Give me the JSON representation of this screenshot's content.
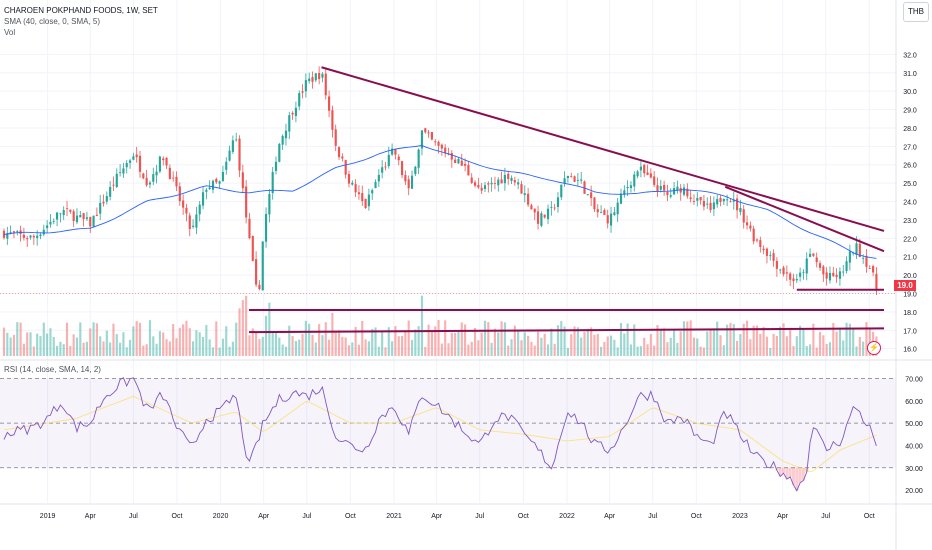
{
  "legend": {
    "title": "CHAROEN POKPHAND FOODS, 1W, SET",
    "sma": "SMA (40, close, 0, SMA, 5)",
    "vol": "Vol",
    "rsi": "RSI (14, close, SMA, 14, 2)"
  },
  "currency": "THB",
  "last_price": "19.0",
  "bolt_icon": "⚡",
  "chart_data": {
    "type": "candlestick",
    "timeframe": "1W",
    "price_axis": {
      "ticks": [
        "32.0",
        "31.0",
        "30.0",
        "29.0",
        "28.0",
        "27.0",
        "26.0",
        "25.0",
        "24.0",
        "23.0",
        "22.0",
        "21.0",
        "20.0",
        "19.0",
        "18.0",
        "17.0",
        "16.0"
      ],
      "range": [
        15.6,
        33.0
      ]
    },
    "rsi_axis": {
      "ticks": [
        "70.00",
        "60.00",
        "50.00",
        "40.00",
        "30.00",
        "20.00"
      ],
      "range": [
        16,
        72
      ],
      "levels": [
        70,
        50,
        30
      ]
    },
    "x_ticks": [
      "2019",
      "Apr",
      "Jul",
      "Oct",
      "2020",
      "Apr",
      "Jul",
      "Oct",
      "2021",
      "Apr",
      "Jul",
      "Oct",
      "2022",
      "Apr",
      "Jul",
      "Oct",
      "2023",
      "Apr",
      "Jul",
      "Oct"
    ],
    "x_tick_dates": [
      "2019-01",
      "2019-04",
      "2019-07",
      "2019-10",
      "2020-01",
      "2020-04",
      "2020-07",
      "2020-10",
      "2021-01",
      "2021-04",
      "2021-07",
      "2021-10",
      "2022-01",
      "2022-04",
      "2022-07",
      "2022-10",
      "2023-01",
      "2023-04",
      "2023-07",
      "2023-10"
    ],
    "date_range": [
      "2018-10",
      "2023-11"
    ],
    "price_keyframes": [
      [
        "2018-10",
        22.3
      ],
      [
        "2018-12",
        22.0
      ],
      [
        "2019-02",
        23.5
      ],
      [
        "2019-04",
        22.8
      ],
      [
        "2019-06",
        25.5
      ],
      [
        "2019-07",
        26.6
      ],
      [
        "2019-08",
        25.0
      ],
      [
        "2019-09",
        26.5
      ],
      [
        "2019-10",
        24.5
      ],
      [
        "2019-11",
        22.3
      ],
      [
        "2019-12",
        24.8
      ],
      [
        "2020-01",
        25.0
      ],
      [
        "2020-02",
        27.7
      ],
      [
        "2020-03",
        22.0
      ],
      [
        "2020-03-20",
        18.5
      ],
      [
        "2020-04",
        22.5
      ],
      [
        "2020-05",
        27.0
      ],
      [
        "2020-06",
        29.0
      ],
      [
        "2020-07",
        30.5
      ],
      [
        "2020-08",
        31.0
      ],
      [
        "2020-09",
        27.0
      ],
      [
        "2020-10",
        25.0
      ],
      [
        "2020-11",
        23.7
      ],
      [
        "2020-12",
        25.5
      ],
      [
        "2021-01",
        26.8
      ],
      [
        "2021-02",
        24.5
      ],
      [
        "2021-03",
        27.8
      ],
      [
        "2021-04",
        27.0
      ],
      [
        "2021-05",
        26.5
      ],
      [
        "2021-06",
        25.8
      ],
      [
        "2021-07",
        24.5
      ],
      [
        "2021-08",
        25.0
      ],
      [
        "2021-09",
        25.5
      ],
      [
        "2021-10",
        24.5
      ],
      [
        "2021-11",
        23.0
      ],
      [
        "2021-12",
        23.5
      ],
      [
        "2022-01",
        25.5
      ],
      [
        "2022-02",
        25.0
      ],
      [
        "2022-03",
        23.5
      ],
      [
        "2022-04",
        23.0
      ],
      [
        "2022-05",
        24.5
      ],
      [
        "2022-06",
        25.8
      ],
      [
        "2022-07",
        25.0
      ],
      [
        "2022-08",
        24.3
      ],
      [
        "2022-09",
        24.8
      ],
      [
        "2022-10",
        24.0
      ],
      [
        "2022-11",
        23.5
      ],
      [
        "2022-12",
        24.5
      ],
      [
        "2023-01",
        23.5
      ],
      [
        "2023-02",
        22.0
      ],
      [
        "2023-03",
        21.2
      ],
      [
        "2023-04",
        20.2
      ],
      [
        "2023-05",
        19.6
      ],
      [
        "2023-06",
        21.2
      ],
      [
        "2023-07",
        19.8
      ],
      [
        "2023-08",
        20.0
      ],
      [
        "2023-09",
        21.6
      ],
      [
        "2023-10",
        20.5
      ],
      [
        "2023-10-20",
        19.0
      ]
    ],
    "sma_keyframes": [
      [
        "2018-10",
        22.2
      ],
      [
        "2019-04",
        22.5
      ],
      [
        "2019-08",
        24.0
      ],
      [
        "2019-12",
        24.8
      ],
      [
        "2020-03",
        24.5
      ],
      [
        "2020-06",
        24.6
      ],
      [
        "2020-09",
        25.8
      ],
      [
        "2020-12",
        26.6
      ],
      [
        "2021-03",
        27.1
      ],
      [
        "2021-06",
        26.2
      ],
      [
        "2021-09",
        25.6
      ],
      [
        "2021-12",
        25.2
      ],
      [
        "2022-03",
        24.5
      ],
      [
        "2022-06",
        24.4
      ],
      [
        "2022-09",
        24.7
      ],
      [
        "2022-12",
        24.3
      ],
      [
        "2023-03",
        23.5
      ],
      [
        "2023-06",
        22.3
      ],
      [
        "2023-09",
        21.2
      ],
      [
        "2023-10-20",
        20.9
      ]
    ],
    "rsi_keyframes": [
      [
        "2018-10",
        45
      ],
      [
        "2018-12",
        48
      ],
      [
        "2019-01",
        52
      ],
      [
        "2019-02",
        60
      ],
      [
        "2019-03",
        48
      ],
      [
        "2019-04",
        50
      ],
      [
        "2019-05",
        62
      ],
      [
        "2019-06",
        67
      ],
      [
        "2019-07",
        70
      ],
      [
        "2019-08",
        55
      ],
      [
        "2019-09",
        63
      ],
      [
        "2019-10",
        48
      ],
      [
        "2019-11",
        38
      ],
      [
        "2019-12",
        52
      ],
      [
        "2020-01",
        55
      ],
      [
        "2020-02",
        63
      ],
      [
        "2020-03",
        30
      ],
      [
        "2020-04",
        50
      ],
      [
        "2020-05",
        60
      ],
      [
        "2020-06",
        64
      ],
      [
        "2020-07",
        62
      ],
      [
        "2020-08",
        66
      ],
      [
        "2020-09",
        44
      ],
      [
        "2020-10",
        40
      ],
      [
        "2020-11",
        38
      ],
      [
        "2020-12",
        52
      ],
      [
        "2021-01",
        58
      ],
      [
        "2021-02",
        45
      ],
      [
        "2021-03",
        63
      ],
      [
        "2021-04",
        58
      ],
      [
        "2021-05",
        52
      ],
      [
        "2021-06",
        46
      ],
      [
        "2021-07",
        40
      ],
      [
        "2021-08",
        52
      ],
      [
        "2021-09",
        53
      ],
      [
        "2021-10",
        45
      ],
      [
        "2021-11",
        38
      ],
      [
        "2021-12",
        30
      ],
      [
        "2022-01",
        56
      ],
      [
        "2022-02",
        50
      ],
      [
        "2022-03",
        40
      ],
      [
        "2022-04",
        38
      ],
      [
        "2022-05",
        48
      ],
      [
        "2022-06",
        62
      ],
      [
        "2022-07",
        63
      ],
      [
        "2022-08",
        50
      ],
      [
        "2022-09",
        53
      ],
      [
        "2022-10",
        44
      ],
      [
        "2022-11",
        40
      ],
      [
        "2022-12",
        55
      ],
      [
        "2023-01",
        45
      ],
      [
        "2023-02",
        35
      ],
      [
        "2023-03",
        32
      ],
      [
        "2023-04",
        28
      ],
      [
        "2023-05",
        22
      ],
      [
        "2023-05-20",
        25
      ],
      [
        "2023-06",
        50
      ],
      [
        "2023-07",
        38
      ],
      [
        "2023-08",
        42
      ],
      [
        "2023-09",
        58
      ],
      [
        "2023-10",
        48
      ],
      [
        "2023-10-20",
        38
      ]
    ],
    "rsi_sma_keyframes": [
      [
        "2018-10",
        47
      ],
      [
        "2019-03",
        52
      ],
      [
        "2019-07",
        62
      ],
      [
        "2019-11",
        50
      ],
      [
        "2020-02",
        55
      ],
      [
        "2020-04",
        46
      ],
      [
        "2020-07",
        60
      ],
      [
        "2020-10",
        50
      ],
      [
        "2021-01",
        50
      ],
      [
        "2021-04",
        57
      ],
      [
        "2021-07",
        47
      ],
      [
        "2021-10",
        45
      ],
      [
        "2022-01",
        42
      ],
      [
        "2022-04",
        44
      ],
      [
        "2022-07",
        57
      ],
      [
        "2022-10",
        50
      ],
      [
        "2023-01",
        47
      ],
      [
        "2023-04",
        33
      ],
      [
        "2023-06",
        28
      ],
      [
        "2023-08",
        38
      ],
      [
        "2023-10-20",
        45
      ]
    ],
    "trendlines": [
      {
        "name": "main-resistance",
        "from": [
          "2020-08",
          31.3
        ],
        "to": [
          "2023-11",
          22.4
        ]
      },
      {
        "name": "secondary-resistance",
        "from": [
          "2022-12",
          24.8
        ],
        "to": [
          "2023-11",
          21.3
        ]
      },
      {
        "name": "recent-support",
        "from": [
          "2023-05",
          19.2
        ],
        "to": [
          "2023-11",
          19.2
        ]
      },
      {
        "name": "support-18",
        "from": [
          "2020-03",
          18.1
        ],
        "to": [
          "2023-11",
          18.1
        ]
      },
      {
        "name": "support-17",
        "from": [
          "2020-03",
          16.9
        ],
        "to": [
          "2023-11",
          17.1
        ]
      }
    ],
    "colors": {
      "up": "#26a69a",
      "down": "#ef5350",
      "sma": "#2962ff",
      "rsi": "#7e57c2",
      "rsi_sma": "#fdd835",
      "trendline": "#880e4f",
      "last_price": "#f23645"
    }
  }
}
